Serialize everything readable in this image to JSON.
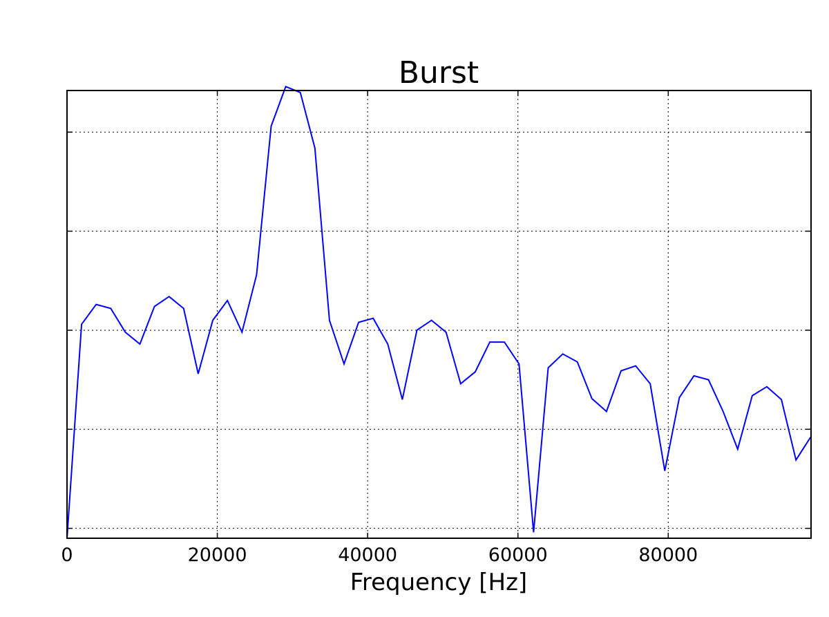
{
  "chart_data": {
    "type": "line",
    "title": "Burst",
    "xlabel": "Frequency [Hz]",
    "ylabel": "",
    "xlim": [
      0,
      99000
    ],
    "ylim": [
      0,
      4.52
    ],
    "x_ticks": [
      0,
      20000,
      40000,
      60000,
      80000
    ],
    "x_tick_labels": [
      "0",
      "20000",
      "40000",
      "60000",
      "80000"
    ],
    "y_ticks": [
      0.1,
      1.1,
      2.1,
      3.1,
      4.1
    ],
    "grid": true,
    "grid_style": "dotted",
    "line_color": "#0000ff",
    "series": [
      {
        "x": [
          0,
          1940,
          3880,
          5820,
          7760,
          9700,
          11640,
          13580,
          15520,
          17460,
          19400,
          21340,
          23280,
          25220,
          27160,
          29100,
          31040,
          32980,
          34920,
          36860,
          38800,
          40740,
          42680,
          44620,
          46560,
          48500,
          50440,
          52380,
          54320,
          56260,
          58200,
          60140,
          62080,
          64020,
          65960,
          67900,
          69840,
          71780,
          73720,
          75660,
          77600,
          79540,
          81480,
          83420,
          85360,
          87300,
          89240,
          91180,
          93120,
          95060,
          97000,
          98940
        ],
        "y": [
          0.0,
          2.16,
          2.36,
          2.32,
          2.08,
          1.96,
          2.34,
          2.44,
          2.32,
          1.66,
          2.2,
          2.4,
          2.08,
          2.66,
          4.16,
          4.56,
          4.5,
          3.94,
          2.2,
          1.76,
          2.18,
          2.22,
          1.96,
          1.4,
          2.1,
          2.2,
          2.08,
          1.56,
          1.68,
          1.98,
          1.98,
          1.76,
          0.06,
          1.72,
          1.86,
          1.78,
          1.41,
          1.28,
          1.69,
          1.74,
          1.56,
          0.68,
          1.42,
          1.64,
          1.6,
          1.28,
          0.9,
          1.44,
          1.53,
          1.4,
          0.79,
          1.02
        ]
      }
    ]
  }
}
